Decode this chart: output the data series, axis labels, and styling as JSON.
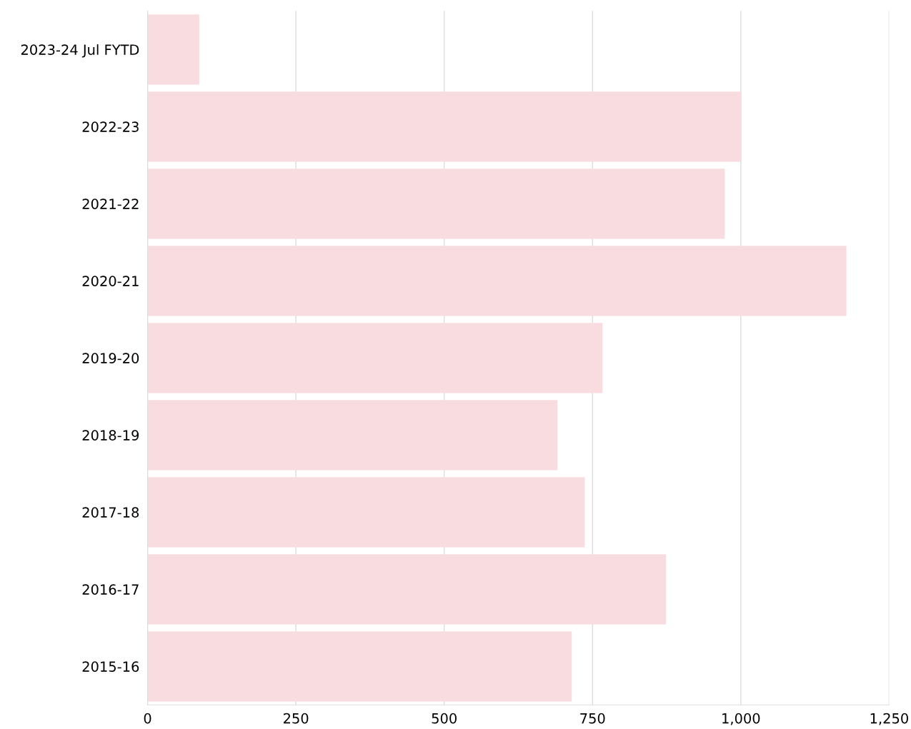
{
  "chart_data": {
    "type": "bar",
    "orientation": "horizontal",
    "categories": [
      "2023-24 Jul FYTD",
      "2022-23",
      "2021-22",
      "2020-21",
      "2019-20",
      "2018-19",
      "2017-18",
      "2016-17",
      "2015-16"
    ],
    "values": [
      87,
      1001,
      973,
      1178,
      767,
      691,
      737,
      874,
      715
    ],
    "color": "#f8dce0",
    "xlim": [
      0,
      1250
    ],
    "xticks": [
      0,
      250,
      500,
      750,
      {
        "value": 1000,
        "label": "1,000"
      },
      {
        "value": 1250,
        "label": "1,250"
      }
    ],
    "grid": "x",
    "legend": false
  }
}
